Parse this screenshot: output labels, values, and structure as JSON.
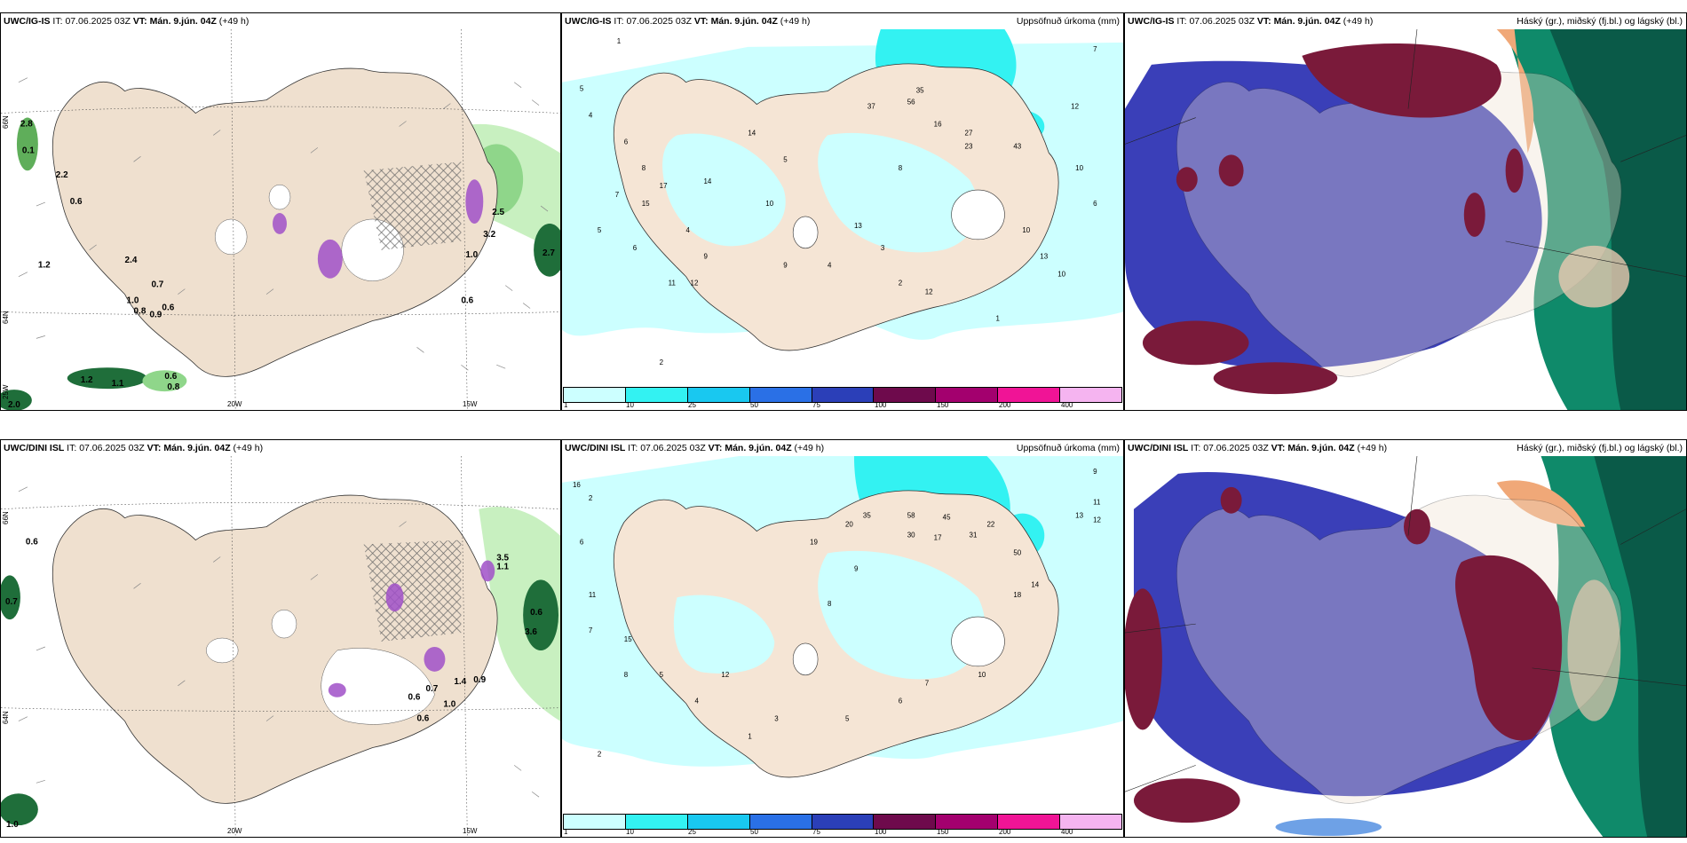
{
  "panels": [
    {
      "model": "UWC/IG-IS",
      "it_label": "IT:",
      "it": "07.06.2025 03Z",
      "vt_label": "VT:",
      "vt": "Mán. 9.jún. 04Z",
      "lead": "(+49 h)",
      "right": ""
    },
    {
      "model": "UWC/IG-IS",
      "it_label": "IT:",
      "it": "07.06.2025 03Z",
      "vt_label": "VT:",
      "vt": "Mán. 9.jún. 04Z",
      "lead": "(+49 h)",
      "right": "Uppsöfnuð úrkoma (mm)"
    },
    {
      "model": "UWC/IG-IS",
      "it_label": "IT:",
      "it": "07.06.2025 03Z",
      "vt_label": "VT:",
      "vt": "Mán. 9.jún. 04Z",
      "lead": "(+49 h)",
      "right": "Háský (gr.), miðský (fj.bl.) og lágský (bl.)"
    },
    {
      "model": "UWC/DINI ISL",
      "it_label": "IT:",
      "it": "07.06.2025 03Z",
      "vt_label": "VT:",
      "vt": "Mán. 9.jún. 04Z",
      "lead": "(+49 h)",
      "right": ""
    },
    {
      "model": "UWC/DINI ISL",
      "it_label": "IT:",
      "it": "07.06.2025 03Z",
      "vt_label": "VT:",
      "vt": "Mán. 9.jún. 04Z",
      "lead": "(+49 h)",
      "right": "Uppsöfnuð úrkoma (mm)"
    },
    {
      "model": "UWC/DINI ISL",
      "it_label": "IT:",
      "it": "07.06.2025 03Z",
      "vt_label": "VT:",
      "vt": "Mán. 9.jún. 04Z",
      "lead": "(+49 h)",
      "right": "Háský (gr.), miðský (fj.bl.) og lágský (bl.)"
    }
  ],
  "colorbar": {
    "labels": [
      "1",
      "10",
      "25",
      "50",
      "75",
      "100",
      "150",
      "200",
      "400"
    ],
    "colors": [
      "#ccffff",
      "#33f2f2",
      "#19c8f0",
      "#2a70e6",
      "#2b3fb8",
      "#6e0a4c",
      "#a3006e",
      "#f01496",
      "#f5b4f0"
    ]
  },
  "grid_labels": {
    "lon": [
      "20W",
      "15W"
    ],
    "lat": [
      "66N",
      "64N"
    ],
    "lat_bottom_left": "25W"
  },
  "colors": {
    "land": "#efe0cf",
    "precip_light": "#ccffff",
    "precip_mid": "#33f2f2",
    "precip_green_light": "#c8f0c0",
    "precip_green_dark": "#1f6e3a",
    "cloud_high": "#7a1a3a",
    "cloud_mid": "#3a3fb8",
    "cloud_low": "#0f8a6a"
  },
  "precip_values": {
    "p1": [
      "1",
      "5",
      "4",
      "6",
      "8",
      "7",
      "5",
      "6",
      "4",
      "9",
      "11",
      "12",
      "14",
      "17",
      "10",
      "15",
      "13",
      "37",
      "56",
      "35",
      "16",
      "27",
      "23",
      "43",
      "12",
      "10",
      "10",
      "7",
      "6",
      "8",
      "9",
      "3",
      "2",
      "4",
      "10",
      "12",
      "13",
      "14",
      "2",
      "1",
      "5"
    ],
    "p4": [
      "16",
      "2",
      "6",
      "11",
      "7",
      "8",
      "5",
      "4",
      "12",
      "15",
      "19",
      "20",
      "35",
      "58",
      "45",
      "30",
      "17",
      "31",
      "22",
      "50",
      "13",
      "12",
      "11",
      "9",
      "8",
      "18",
      "14",
      "10",
      "7",
      "6",
      "5",
      "3",
      "2",
      "1",
      "9"
    ]
  },
  "p0_values": [
    "2.8",
    "0.1",
    "2.2",
    "0.6",
    "1.2",
    "2.4",
    "1.0",
    "0.7",
    "0.8",
    "0.6",
    "0.9",
    "1.2",
    "1.1",
    "0.6",
    "0.8",
    "2.0",
    "2.5",
    "1.0",
    "0.6",
    "3.2",
    "2.7"
  ],
  "p3_values": [
    "0.6",
    "0.7",
    "1.1",
    "3.6",
    "3.5",
    "0.6",
    "1.4",
    "0.9",
    "0.7",
    "0.6",
    "0.6",
    "1.0",
    "1.0"
  ]
}
